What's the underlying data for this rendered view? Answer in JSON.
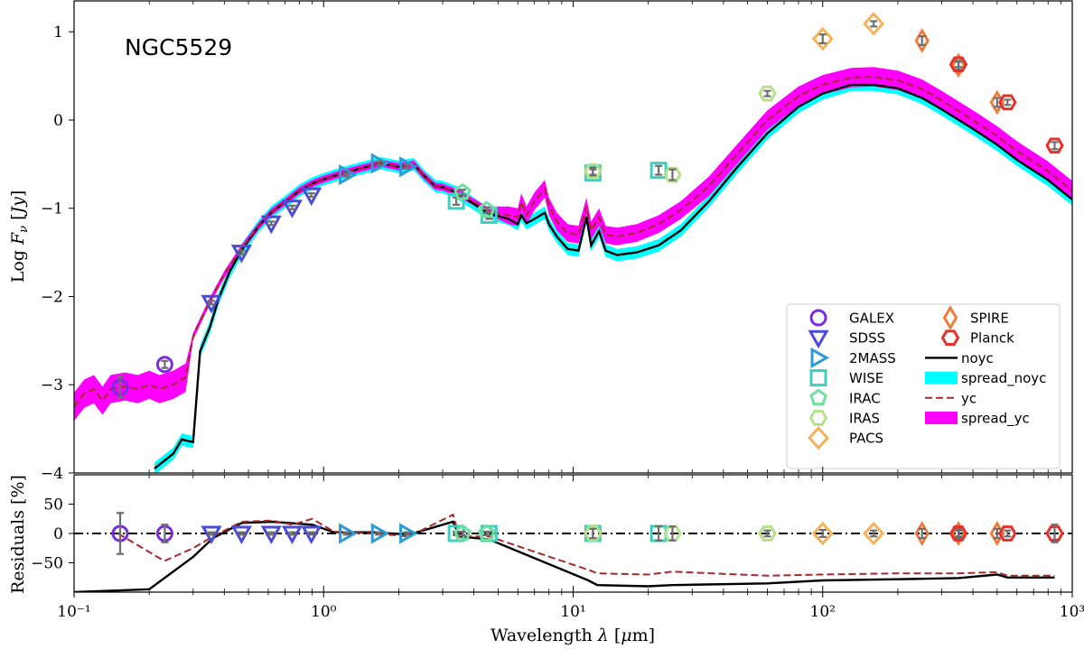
{
  "chart_data": {
    "type": "line",
    "title": "NGC5529",
    "xlabel": "Wavelength λ [μm]",
    "ylabel_top": "Log F_ν [Jy]",
    "ylabel_bottom": "Residuals [%]",
    "xscale": "log",
    "xlim": [
      0.1,
      1000
    ],
    "ylim_top": [
      -4,
      1.35
    ],
    "ylim_bottom": [
      -100,
      100
    ],
    "x_tick_labels": [
      "10⁻¹",
      "10⁰",
      "10¹",
      "10²",
      "10³"
    ],
    "y_ticks_top": [
      1,
      0,
      -1,
      -2,
      -3,
      -4
    ],
    "y_tick_labels_top": [
      "1",
      "0",
      "−1",
      "−2",
      "−3",
      "−4"
    ],
    "y_ticks_bottom": [
      50,
      0,
      -50
    ],
    "y_tick_labels_bottom": [
      "50",
      "0",
      "−50"
    ],
    "colors": {
      "GALEX": "#7b2be2",
      "SDSS": "#4b4bd8",
      "2MASS": "#2a9cd6",
      "WISE": "#3fcfbf",
      "IRAC": "#6fe0a0",
      "IRAS": "#b6e08a",
      "PACS": "#f5b25a",
      "SPIRE": "#f07c3a",
      "Planck": "#e8302a",
      "noyc": "#000000",
      "spread_noyc": "#00ffff",
      "yc": "#a52a2a",
      "spread_yc": "#ff00ff",
      "errbar": "#6e6e6e"
    },
    "legend": [
      {
        "label": "GALEX",
        "kind": "circle"
      },
      {
        "label": "SDSS",
        "kind": "tri-down"
      },
      {
        "label": "2MASS",
        "kind": "tri-right"
      },
      {
        "label": "WISE",
        "kind": "square"
      },
      {
        "label": "IRAC",
        "kind": "pentagon"
      },
      {
        "label": "IRAS",
        "kind": "hexagon"
      },
      {
        "label": "PACS",
        "kind": "diamond"
      },
      {
        "label": "SPIRE",
        "kind": "thin-diamond"
      },
      {
        "label": "Planck",
        "kind": "hexagon"
      },
      {
        "label": "noyc",
        "kind": "line"
      },
      {
        "label": "spread_noyc",
        "kind": "patch"
      },
      {
        "label": "yc",
        "kind": "dashed"
      },
      {
        "label": "spread_yc",
        "kind": "patch"
      }
    ],
    "observations": [
      {
        "band": "GALEX",
        "x": 0.153,
        "y": -3.03,
        "err": 0.12,
        "res": 0,
        "res_err": 35
      },
      {
        "band": "GALEX",
        "x": 0.231,
        "y": -2.77,
        "err": 0.04,
        "res": 0,
        "res_err": 15
      },
      {
        "band": "SDSS",
        "x": 0.355,
        "y": -2.07,
        "err": 0.02,
        "res": 0,
        "res_err": 2
      },
      {
        "band": "SDSS",
        "x": 0.469,
        "y": -1.5,
        "err": 0.02,
        "res": 0,
        "res_err": 2
      },
      {
        "band": "SDSS",
        "x": 0.617,
        "y": -1.17,
        "err": 0.02,
        "res": 0,
        "res_err": 2
      },
      {
        "band": "SDSS",
        "x": 0.748,
        "y": -0.99,
        "err": 0.02,
        "res": 0,
        "res_err": 2
      },
      {
        "band": "SDSS",
        "x": 0.893,
        "y": -0.85,
        "err": 0.02,
        "res": 0,
        "res_err": 2
      },
      {
        "band": "2MASS",
        "x": 1.235,
        "y": -0.62,
        "err": 0.02,
        "res": 0,
        "res_err": 2
      },
      {
        "band": "2MASS",
        "x": 1.662,
        "y": -0.49,
        "err": 0.02,
        "res": 0,
        "res_err": 2
      },
      {
        "band": "2MASS",
        "x": 2.159,
        "y": -0.53,
        "err": 0.02,
        "res": 0,
        "res_err": 2
      },
      {
        "band": "WISE",
        "x": 3.4,
        "y": -0.92,
        "err": 0.04,
        "res": 0,
        "res_err": 3
      },
      {
        "band": "WISE",
        "x": 4.6,
        "y": -1.08,
        "err": 0.04,
        "res": 0,
        "res_err": 3
      },
      {
        "band": "WISE",
        "x": 12.0,
        "y": -0.6,
        "err": 0.04,
        "res": 0,
        "res_err": 10
      },
      {
        "band": "WISE",
        "x": 22.0,
        "y": -0.57,
        "err": 0.05,
        "res": 0,
        "res_err": 12
      },
      {
        "band": "IRAC",
        "x": 3.6,
        "y": -0.82,
        "err": 0.03,
        "res": 0,
        "res_err": 3
      },
      {
        "band": "IRAC",
        "x": 4.5,
        "y": -1.02,
        "err": 0.03,
        "res": 0,
        "res_err": 3
      },
      {
        "band": "IRAS",
        "x": 12.0,
        "y": -0.58,
        "err": 0.04,
        "res": 0,
        "res_err": 8
      },
      {
        "band": "IRAS",
        "x": 25.0,
        "y": -0.62,
        "err": 0.06,
        "res": 0,
        "res_err": 12
      },
      {
        "band": "IRAS",
        "x": 60.0,
        "y": 0.3,
        "err": 0.03,
        "res": 0,
        "res_err": 5
      },
      {
        "band": "PACS",
        "x": 100.0,
        "y": 0.92,
        "err": 0.05,
        "res": 0,
        "res_err": 6
      },
      {
        "band": "PACS",
        "x": 160.0,
        "y": 1.09,
        "err": 0.03,
        "res": 0,
        "res_err": 5
      },
      {
        "band": "SPIRE",
        "x": 250.0,
        "y": 0.9,
        "err": 0.05,
        "res": 0,
        "res_err": 8
      },
      {
        "band": "SPIRE",
        "x": 350.0,
        "y": 0.62,
        "err": 0.05,
        "res": 0,
        "res_err": 8
      },
      {
        "band": "SPIRE",
        "x": 500.0,
        "y": 0.2,
        "err": 0.05,
        "res": 0,
        "res_err": 8
      },
      {
        "band": "Planck",
        "x": 350.0,
        "y": 0.63,
        "err": 0.03,
        "res": 0,
        "res_err": 5
      },
      {
        "band": "Planck",
        "x": 550.0,
        "y": 0.2,
        "err": 0.03,
        "res": 0,
        "res_err": 5
      },
      {
        "band": "Planck",
        "x": 850.0,
        "y": -0.29,
        "err": 0.04,
        "res": 0,
        "res_err": 15
      }
    ],
    "series": [
      {
        "name": "noyc",
        "x": [
          0.21,
          0.25,
          0.27,
          0.3,
          0.32,
          0.35,
          0.38,
          0.42,
          0.47,
          0.55,
          0.62,
          0.7,
          0.8,
          0.9,
          1.0,
          1.2,
          1.4,
          1.7,
          2.0,
          2.3,
          2.5,
          2.8,
          3.0,
          3.4,
          4.0,
          4.5,
          5.5,
          6.0,
          6.2,
          6.5,
          7.0,
          7.7,
          8.0,
          8.6,
          9.5,
          10.5,
          11.3,
          11.8,
          12.7,
          13.5,
          15,
          18,
          22,
          27,
          35,
          45,
          60,
          80,
          100,
          130,
          160,
          200,
          250,
          300,
          400,
          500,
          600,
          800,
          1000
        ],
        "y": [
          -3.95,
          -3.78,
          -3.62,
          -3.65,
          -2.62,
          -2.35,
          -2.02,
          -1.72,
          -1.47,
          -1.2,
          -1.04,
          -0.93,
          -0.8,
          -0.72,
          -0.67,
          -0.6,
          -0.55,
          -0.49,
          -0.53,
          -0.5,
          -0.62,
          -0.75,
          -0.76,
          -0.82,
          -0.95,
          -1.05,
          -1.12,
          -1.18,
          -1.08,
          -1.17,
          -1.12,
          -1.05,
          -1.18,
          -1.32,
          -1.46,
          -1.48,
          -1.1,
          -1.42,
          -1.26,
          -1.48,
          -1.53,
          -1.5,
          -1.42,
          -1.25,
          -0.92,
          -0.55,
          -0.15,
          0.15,
          0.3,
          0.4,
          0.4,
          0.36,
          0.25,
          0.12,
          -0.1,
          -0.28,
          -0.45,
          -0.68,
          -0.9
        ]
      },
      {
        "name": "yc",
        "x": [
          0.1,
          0.11,
          0.12,
          0.13,
          0.14,
          0.16,
          0.18,
          0.2,
          0.22,
          0.25,
          0.28,
          0.3,
          0.35,
          0.4,
          0.47,
          0.55,
          0.62,
          0.7,
          0.8,
          0.9,
          1.0,
          1.2,
          1.4,
          1.7,
          2.0,
          2.3,
          2.5,
          2.8,
          3.0,
          3.4,
          4.0,
          4.5,
          5.5,
          6.0,
          6.2,
          6.5,
          7.0,
          7.7,
          8.0,
          8.6,
          9.5,
          10.5,
          11.3,
          11.8,
          12.7,
          13.5,
          15,
          18,
          22,
          27,
          35,
          45,
          60,
          80,
          100,
          130,
          160,
          200,
          250,
          300,
          400,
          500,
          600,
          800,
          1000
        ],
        "y": [
          -3.25,
          -3.1,
          -3.05,
          -3.18,
          -3.05,
          -3.02,
          -3.05,
          -3.0,
          -3.05,
          -3.0,
          -2.92,
          -2.45,
          -2.05,
          -1.75,
          -1.45,
          -1.2,
          -1.04,
          -0.93,
          -0.8,
          -0.72,
          -0.67,
          -0.6,
          -0.55,
          -0.49,
          -0.53,
          -0.5,
          -0.62,
          -0.75,
          -0.76,
          -0.82,
          -0.93,
          -1.02,
          -1.08,
          -1.1,
          -0.93,
          -1.08,
          -0.92,
          -0.78,
          -0.98,
          -1.15,
          -1.28,
          -1.3,
          -0.98,
          -1.25,
          -1.1,
          -1.3,
          -1.32,
          -1.28,
          -1.18,
          -1.02,
          -0.75,
          -0.4,
          0.0,
          0.27,
          0.4,
          0.48,
          0.49,
          0.45,
          0.35,
          0.22,
          0.0,
          -0.18,
          -0.35,
          -0.58,
          -0.8
        ]
      }
    ],
    "residuals": [
      {
        "name": "noyc",
        "x": [
          0.1,
          0.2,
          0.3,
          0.36,
          0.47,
          0.62,
          0.9,
          1.1,
          1.6,
          2.2,
          3.3,
          3.5,
          4.6,
          11.5,
          12.5,
          20,
          25,
          60,
          100,
          200,
          350,
          500,
          550,
          850
        ],
        "y": [
          -100,
          -95,
          -40,
          -8,
          18,
          20,
          15,
          2,
          2,
          -2,
          20,
          -5,
          -10,
          -80,
          -88,
          -90,
          -88,
          -85,
          -80,
          -78,
          -76,
          -70,
          -75,
          -75
        ]
      },
      {
        "name": "yc",
        "x": [
          0.15,
          0.23,
          0.3,
          0.36,
          0.47,
          0.62,
          0.75,
          0.9,
          1.1,
          1.6,
          2.2,
          3.3,
          3.5,
          4.6,
          11.5,
          12.5,
          20,
          25,
          60,
          100,
          200,
          350,
          500,
          550,
          850
        ],
        "y": [
          0,
          -47,
          -25,
          -5,
          20,
          22,
          15,
          25,
          3,
          0,
          -5,
          32,
          -5,
          -5,
          -62,
          -68,
          -70,
          -65,
          -72,
          -70,
          -68,
          -68,
          -66,
          -72,
          -72
        ]
      }
    ]
  }
}
